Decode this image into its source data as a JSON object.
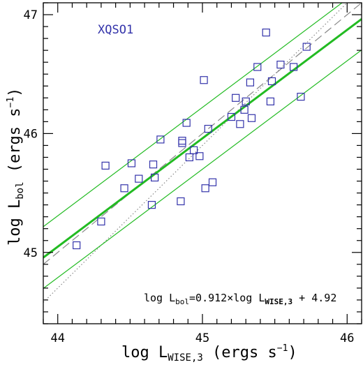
{
  "chart_data": {
    "type": "scatter",
    "title": "",
    "panel_label": "XQSO1",
    "xlabel": {
      "prefix": "log L",
      "sub": "WISE,3",
      "suffix": " (ergs s",
      "sup": "−1",
      "close": ")"
    },
    "ylabel": {
      "prefix": "log L",
      "sub": "bol",
      "suffix": " (ergs s",
      "sup": "−1",
      "close": ")"
    },
    "xlim": [
      43.9,
      46.1
    ],
    "ylim": [
      44.4,
      47.1
    ],
    "x_ticks": [
      44,
      45,
      46
    ],
    "y_ticks": [
      45,
      46,
      47
    ],
    "fit_equation": {
      "part1": "log L",
      "sub1": "bol",
      "part2": "=0.912×log L",
      "sub2": "WISE,3",
      "part3": " + 4.92"
    },
    "fit": {
      "slope": 0.912,
      "intercept": 4.92,
      "band_offset": 0.26
    },
    "dashed_line": {
      "slope": 1.0,
      "intercept": 1.0
    },
    "dotted_line": {
      "slope": 1.2,
      "intercept": -8.1
    },
    "colors": {
      "points": "#3333aa",
      "fit": "#22bb22",
      "reference": "#888888",
      "axis": "#000000",
      "label": "#3333aa"
    },
    "points": [
      [
        44.13,
        45.06
      ],
      [
        44.3,
        45.26
      ],
      [
        44.33,
        45.73
      ],
      [
        44.46,
        45.54
      ],
      [
        44.51,
        45.75
      ],
      [
        44.56,
        45.62
      ],
      [
        44.65,
        45.4
      ],
      [
        44.66,
        45.74
      ],
      [
        44.67,
        45.63
      ],
      [
        44.71,
        45.95
      ],
      [
        44.85,
        45.43
      ],
      [
        44.86,
        45.94
      ],
      [
        44.86,
        45.92
      ],
      [
        44.89,
        46.09
      ],
      [
        44.91,
        45.8
      ],
      [
        44.94,
        45.86
      ],
      [
        44.98,
        45.81
      ],
      [
        45.01,
        46.45
      ],
      [
        45.02,
        45.54
      ],
      [
        45.04,
        46.04
      ],
      [
        45.07,
        45.59
      ],
      [
        45.2,
        46.14
      ],
      [
        45.23,
        46.3
      ],
      [
        45.26,
        46.08
      ],
      [
        45.29,
        46.2
      ],
      [
        45.3,
        46.27
      ],
      [
        45.33,
        46.43
      ],
      [
        45.34,
        46.13
      ],
      [
        45.38,
        46.56
      ],
      [
        45.44,
        46.85
      ],
      [
        45.47,
        46.27
      ],
      [
        45.48,
        46.44
      ],
      [
        45.54,
        46.58
      ],
      [
        45.63,
        46.56
      ],
      [
        45.68,
        46.31
      ],
      [
        45.72,
        46.73
      ]
    ]
  }
}
